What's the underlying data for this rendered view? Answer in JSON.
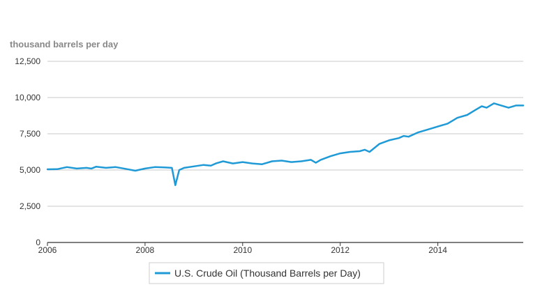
{
  "chart_data": {
    "type": "line",
    "unit_label": "thousand barrels per day",
    "xlabel": "",
    "ylabel": "",
    "ylim": [
      0,
      12500
    ],
    "y_ticks": [
      {
        "value": 0,
        "label": "0"
      },
      {
        "value": 2500,
        "label": "2,500"
      },
      {
        "value": 5000,
        "label": "5,000"
      },
      {
        "value": 7500,
        "label": "7,500"
      },
      {
        "value": 10000,
        "label": "10,000"
      },
      {
        "value": 12500,
        "label": "12,500"
      }
    ],
    "xlim": [
      2006.0,
      2015.75
    ],
    "x_ticks": [
      {
        "value": 2006,
        "label": "2006"
      },
      {
        "value": 2008,
        "label": "2008"
      },
      {
        "value": 2010,
        "label": "2010"
      },
      {
        "value": 2012,
        "label": "2012"
      },
      {
        "value": 2014,
        "label": "2014"
      }
    ],
    "grid": true,
    "legend": "bottom",
    "series": [
      {
        "name": "U.S. Crude Oil (Thousand Barrels per Day)",
        "color": "#1f9ad6",
        "x": [
          2006.0,
          2006.2,
          2006.4,
          2006.6,
          2006.8,
          2006.9,
          2007.0,
          2007.2,
          2007.4,
          2007.6,
          2007.8,
          2008.0,
          2008.2,
          2008.4,
          2008.55,
          2008.62,
          2008.7,
          2008.8,
          2009.0,
          2009.2,
          2009.35,
          2009.45,
          2009.6,
          2009.8,
          2010.0,
          2010.2,
          2010.4,
          2010.6,
          2010.8,
          2011.0,
          2011.2,
          2011.4,
          2011.5,
          2011.6,
          2011.8,
          2012.0,
          2012.2,
          2012.4,
          2012.5,
          2012.6,
          2012.8,
          2013.0,
          2013.2,
          2013.3,
          2013.4,
          2013.6,
          2013.8,
          2014.0,
          2014.2,
          2014.4,
          2014.6,
          2014.8,
          2014.9,
          2015.0,
          2015.15,
          2015.3,
          2015.45,
          2015.6,
          2015.75
        ],
        "values": [
          5050,
          5060,
          5200,
          5100,
          5150,
          5100,
          5230,
          5150,
          5200,
          5080,
          4950,
          5100,
          5200,
          5180,
          5150,
          3950,
          5000,
          5150,
          5250,
          5350,
          5300,
          5450,
          5600,
          5450,
          5550,
          5450,
          5400,
          5600,
          5650,
          5550,
          5600,
          5700,
          5500,
          5700,
          5950,
          6150,
          6250,
          6300,
          6400,
          6250,
          6800,
          7050,
          7200,
          7350,
          7300,
          7600,
          7800,
          8000,
          8200,
          8600,
          8800,
          9200,
          9400,
          9300,
          9600,
          9450,
          9300,
          9450,
          9450
        ]
      }
    ]
  }
}
